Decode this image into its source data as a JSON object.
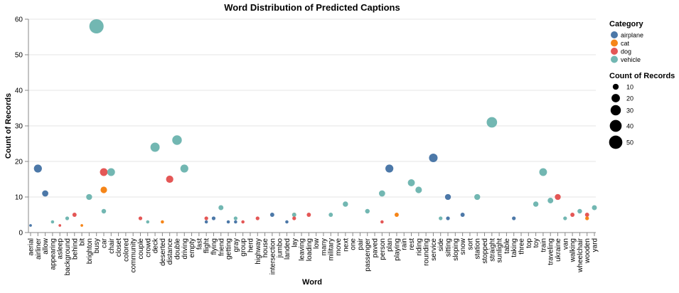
{
  "chart_data": {
    "type": "scatter",
    "title": "Word Distribution of Predicted Captions",
    "xlabel": "Word",
    "ylabel": "Count of Records",
    "ylim": [
      0,
      60
    ],
    "y_ticks": [
      0,
      10,
      20,
      30,
      40,
      50,
      60
    ],
    "grid": true,
    "x_ticks": [
      "aerial",
      "airliner",
      "allow",
      "appearing",
      "asleep",
      "background",
      "behind",
      "bit",
      "brighton",
      "busy",
      "car",
      "chair",
      "closet",
      "colored",
      "community",
      "couple",
      "crowd",
      "deck",
      "deserted",
      "distance",
      "double",
      "driving",
      "empty",
      "fast",
      "flight",
      "flying",
      "friend",
      "getting",
      "gray",
      "group",
      "herd",
      "highway",
      "house",
      "intersection",
      "jumbo",
      "landed",
      "lay",
      "leaving",
      "loading",
      "low",
      "many",
      "military",
      "move",
      "next",
      "one",
      "pair",
      "passenger",
      "paved",
      "person",
      "plan",
      "playing",
      "rain",
      "rest",
      "riding",
      "rounding",
      "service",
      "side",
      "sitting",
      "sloping",
      "snow",
      "sort",
      "station",
      "stopped",
      "straight",
      "sunlight",
      "table",
      "taking",
      "three",
      "top",
      "toy",
      "train",
      "traveling",
      "ukraine",
      "van",
      "walking",
      "wheelchair",
      "wooden",
      "yard"
    ],
    "legend": {
      "position": "right",
      "color_title": "Category",
      "categories": [
        {
          "name": "airplane",
          "color": "#4c78a8"
        },
        {
          "name": "cat",
          "color": "#f58518"
        },
        {
          "name": "dog",
          "color": "#e45756"
        },
        {
          "name": "vehicle",
          "color": "#72b7b2"
        }
      ],
      "size_title": "Count of Records",
      "size_values": [
        10,
        20,
        30,
        40,
        50
      ]
    },
    "points": [
      {
        "x": "aerial",
        "series": "airplane",
        "y": 2
      },
      {
        "x": "airliner",
        "series": "airplane",
        "y": 18
      },
      {
        "x": "allow",
        "series": "airplane",
        "y": 11
      },
      {
        "x": "asleep",
        "series": "dog",
        "y": 2
      },
      {
        "x": "appearing",
        "series": "vehicle",
        "y": 3
      },
      {
        "x": "background",
        "series": "vehicle",
        "y": 4
      },
      {
        "x": "behind",
        "series": "dog",
        "y": 5
      },
      {
        "x": "bit",
        "series": "cat",
        "y": 2
      },
      {
        "x": "brighton",
        "series": "vehicle",
        "y": 10
      },
      {
        "x": "busy",
        "series": "vehicle",
        "y": 58
      },
      {
        "x": "car",
        "series": "dog",
        "y": 17
      },
      {
        "x": "car",
        "series": "cat",
        "y": 12
      },
      {
        "x": "car",
        "series": "vehicle",
        "y": 6
      },
      {
        "x": "chair",
        "series": "vehicle",
        "y": 17
      },
      {
        "x": "couple",
        "series": "dog",
        "y": 4
      },
      {
        "x": "crowd",
        "series": "vehicle",
        "y": 3
      },
      {
        "x": "deck",
        "series": "vehicle",
        "y": 24
      },
      {
        "x": "deserted",
        "series": "cat",
        "y": 3
      },
      {
        "x": "distance",
        "series": "dog",
        "y": 15
      },
      {
        "x": "double",
        "series": "vehicle",
        "y": 26
      },
      {
        "x": "driving",
        "series": "vehicle",
        "y": 18
      },
      {
        "x": "flight",
        "series": "airplane",
        "y": 3
      },
      {
        "x": "flight",
        "series": "dog",
        "y": 4
      },
      {
        "x": "flying",
        "series": "airplane",
        "y": 4
      },
      {
        "x": "friend",
        "series": "vehicle",
        "y": 7
      },
      {
        "x": "getting",
        "series": "airplane",
        "y": 3
      },
      {
        "x": "gray",
        "series": "airplane",
        "y": 3
      },
      {
        "x": "gray",
        "series": "vehicle",
        "y": 4
      },
      {
        "x": "group",
        "series": "dog",
        "y": 3
      },
      {
        "x": "highway",
        "series": "dog",
        "y": 4
      },
      {
        "x": "intersection",
        "series": "airplane",
        "y": 5
      },
      {
        "x": "landed",
        "series": "airplane",
        "y": 3
      },
      {
        "x": "lay",
        "series": "cat",
        "y": 5
      },
      {
        "x": "lay",
        "series": "dog",
        "y": 4
      },
      {
        "x": "lay",
        "series": "vehicle",
        "y": 5
      },
      {
        "x": "loading",
        "series": "dog",
        "y": 5
      },
      {
        "x": "military",
        "series": "vehicle",
        "y": 5
      },
      {
        "x": "next",
        "series": "vehicle",
        "y": 8
      },
      {
        "x": "passenger",
        "series": "vehicle",
        "y": 6
      },
      {
        "x": "person",
        "series": "dog",
        "y": 3
      },
      {
        "x": "person",
        "series": "vehicle",
        "y": 11
      },
      {
        "x": "plan",
        "series": "airplane",
        "y": 18
      },
      {
        "x": "playing",
        "series": "cat",
        "y": 5
      },
      {
        "x": "rest",
        "series": "vehicle",
        "y": 14
      },
      {
        "x": "riding",
        "series": "vehicle",
        "y": 12
      },
      {
        "x": "service",
        "series": "airplane",
        "y": 21
      },
      {
        "x": "side",
        "series": "vehicle",
        "y": 4
      },
      {
        "x": "sitting",
        "series": "airplane",
        "y": 10
      },
      {
        "x": "sitting",
        "series": "airplane",
        "y": 4
      },
      {
        "x": "snow",
        "series": "airplane",
        "y": 5
      },
      {
        "x": "station",
        "series": "vehicle",
        "y": 10
      },
      {
        "x": "straight",
        "series": "vehicle",
        "y": 31
      },
      {
        "x": "taking",
        "series": "airplane",
        "y": 4
      },
      {
        "x": "toy",
        "series": "vehicle",
        "y": 8
      },
      {
        "x": "train",
        "series": "vehicle",
        "y": 17
      },
      {
        "x": "traveling",
        "series": "vehicle",
        "y": 9
      },
      {
        "x": "ukraine",
        "series": "dog",
        "y": 10
      },
      {
        "x": "van",
        "series": "vehicle",
        "y": 4
      },
      {
        "x": "walking",
        "series": "dog",
        "y": 5
      },
      {
        "x": "wheelchair",
        "series": "vehicle",
        "y": 6
      },
      {
        "x": "wooden",
        "series": "cat",
        "y": 4
      },
      {
        "x": "wooden",
        "series": "dog",
        "y": 5
      },
      {
        "x": "yard",
        "series": "vehicle",
        "y": 7
      }
    ]
  }
}
